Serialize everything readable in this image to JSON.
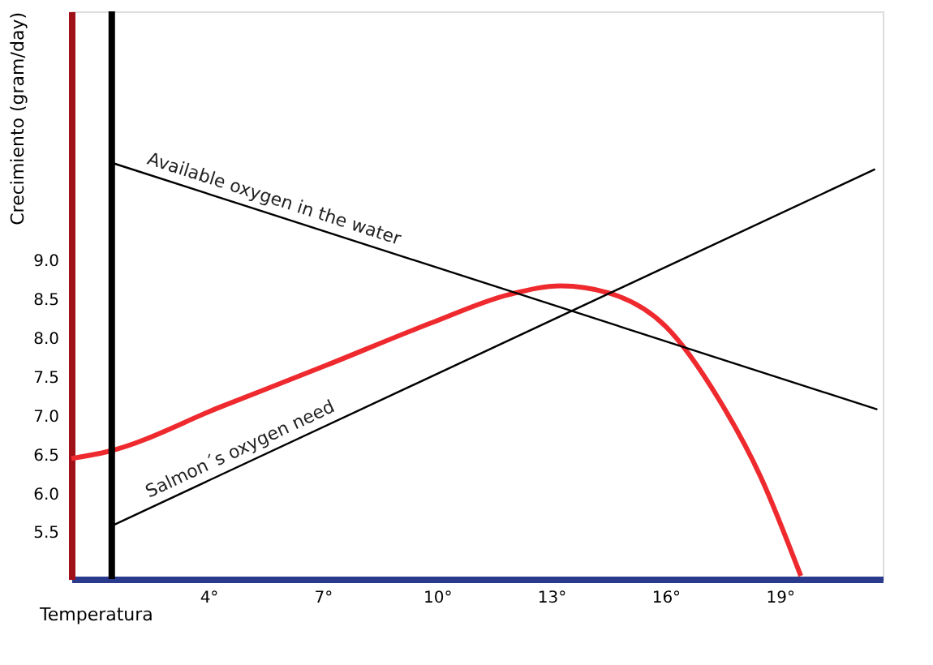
{
  "chart_data": {
    "type": "line",
    "xlabel": "Temperatura",
    "ylabel": "Crecimiento (gram/day)",
    "xlim": [
      0.4,
      21.7
    ],
    "ylim": [
      4.9,
      12.2
    ],
    "xticks": [
      {
        "value": 4,
        "label": "4°"
      },
      {
        "value": 7,
        "label": "7°"
      },
      {
        "value": 10,
        "label": "10°"
      },
      {
        "value": 13,
        "label": "13°"
      },
      {
        "value": 16,
        "label": "16°"
      },
      {
        "value": 19,
        "label": "19°"
      }
    ],
    "yticks": [
      5.5,
      {
        "value": 6,
        "label": "6.0"
      },
      6.5,
      {
        "value": 7,
        "label": "7.0"
      },
      7.5,
      {
        "value": 8,
        "label": "8.0"
      },
      8.5,
      {
        "value": 9,
        "label": "9.0"
      }
    ],
    "grid": false,
    "marker": "none",
    "line_style": "solid",
    "series": [
      {
        "color": "#ee2a2f",
        "x": [
          0.4,
          1.36,
          4.35,
          7.1,
          9.83,
          11.9,
          13.25,
          14.5,
          16.0,
          17.4,
          18.5,
          19.55
        ],
        "values": [
          6.45,
          6.54,
          7.12,
          7.65,
          8.19,
          8.56,
          8.67,
          8.58,
          8.15,
          7.21,
          6.21,
          4.94
        ]
      },
      {
        "color": "#000000",
        "x": [
          1.48,
          21.56
        ],
        "values": [
          10.25,
          7.08
        ]
      },
      {
        "color": "#000000",
        "x": [
          1.44,
          21.5
        ],
        "values": [
          5.58,
          10.17
        ]
      }
    ],
    "ref_lines": [
      {
        "axis": "x",
        "value": 1.46,
        "label": null,
        "color": "#000000"
      }
    ],
    "annotations": [
      {
        "text": "Available oxygen in the water",
        "x": 5.6,
        "y": 9.6
      },
      {
        "text": "Salmon´s oxygen need",
        "x": 5.0,
        "y": 6.39
      }
    ]
  }
}
